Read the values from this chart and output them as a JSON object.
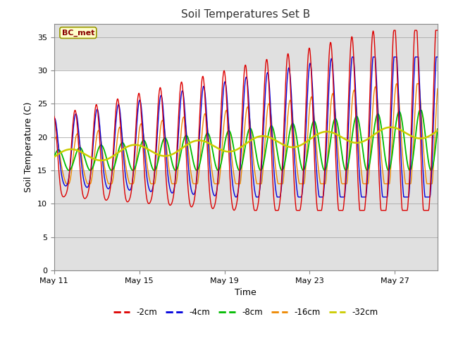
{
  "title": "Soil Temperatures Set B",
  "xlabel": "Time",
  "ylabel": "Soil Temperature (C)",
  "ylim": [
    0,
    37
  ],
  "yticks": [
    0,
    5,
    10,
    15,
    20,
    25,
    30,
    35
  ],
  "annotation_text": "BC_met",
  "shaded_band": [
    15,
    30
  ],
  "colors": {
    "-2cm": "#dd0000",
    "-4cm": "#0000dd",
    "-8cm": "#00bb00",
    "-16cm": "#ee8800",
    "-32cm": "#cccc00"
  },
  "x_tick_labels": [
    "May 11",
    "May 15",
    "May 19",
    "May 23",
    "May 27"
  ],
  "x_tick_positions": [
    0,
    4,
    8,
    12,
    16
  ],
  "figsize": [
    6.4,
    4.8
  ],
  "dpi": 100
}
